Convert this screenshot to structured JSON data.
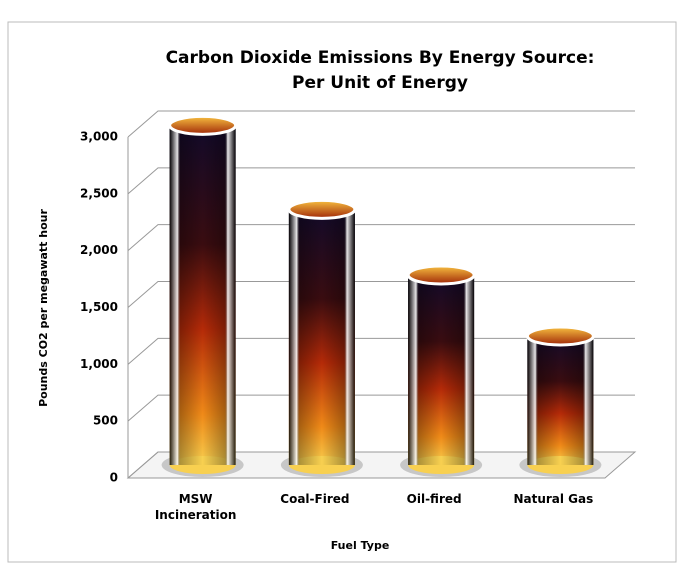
{
  "chart_data": {
    "type": "bar3d",
    "title": [
      "Carbon Dioxide Emissions By Energy Source:",
      "Per Unit of Energy"
    ],
    "categories": [
      "MSW Incineration",
      "Coal-Fired",
      "Oil-fired",
      "Natural Gas"
    ],
    "values": [
      2988,
      2249,
      1672,
      1135
    ],
    "x_label": "Fuel Type",
    "y_label": "Pounds CO2 per megawatt hour",
    "ylim": [
      0,
      3000
    ],
    "yticks": [
      0,
      500,
      {
        "value": 1000,
        "label": "1,000"
      },
      {
        "value": 1500,
        "label": "1,500"
      },
      {
        "value": 2000,
        "label": "2,000"
      },
      {
        "value": 2500,
        "label": "2,500"
      },
      {
        "value": 3000,
        "label": "3,000"
      }
    ],
    "grid": true
  }
}
